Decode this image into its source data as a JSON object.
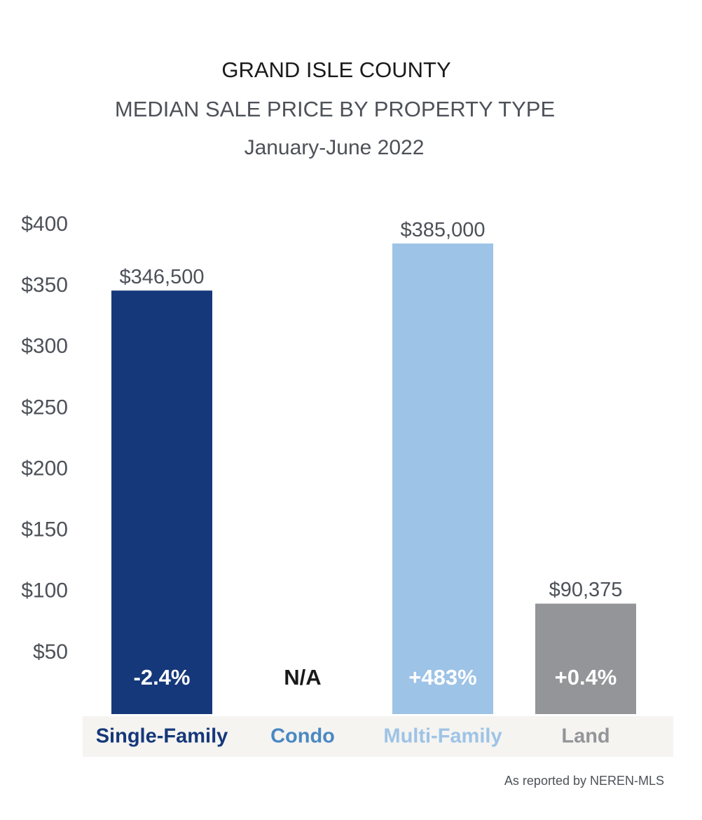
{
  "chart_data": {
    "type": "bar",
    "title": "GRAND ISLE COUNTY",
    "subtitle": "MEDIAN SALE PRICE BY PROPERTY TYPE",
    "period": "January-June 2022",
    "categories": [
      "Single-Family",
      "Condo",
      "Multi-Family",
      "Land"
    ],
    "values": [
      346.5,
      null,
      385,
      90.375
    ],
    "value_labels": [
      "$346,500",
      null,
      "$385,000",
      "$90,375"
    ],
    "changes": [
      "-2.4%",
      "N/A",
      "+483%",
      "+0.4%"
    ],
    "colors": [
      "#15387a",
      null,
      "#9dc3e6",
      "#939598"
    ],
    "label_colors": [
      "#15387a",
      "#4a88c2",
      "#9dc3e6",
      "#939598"
    ],
    "ylim": [
      0,
      400
    ],
    "yticks": [
      {
        "value": 50,
        "label": "$50"
      },
      {
        "value": 100,
        "label": "$100"
      },
      {
        "value": 150,
        "label": "$150"
      },
      {
        "value": 200,
        "label": "$200"
      },
      {
        "value": 250,
        "label": "$250"
      },
      {
        "value": 300,
        "label": "$300"
      },
      {
        "value": 350,
        "label": "$350"
      },
      {
        "value": 400,
        "label": "$400"
      }
    ],
    "source": "As reported by NEREN-MLS"
  }
}
